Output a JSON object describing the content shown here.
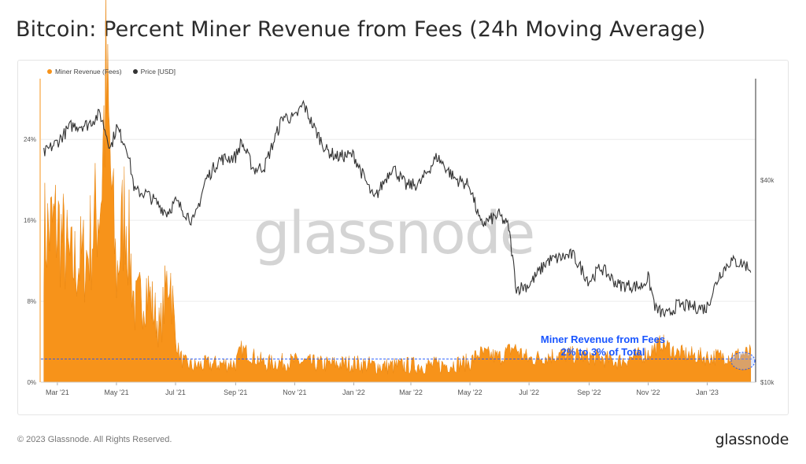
{
  "title": "Bitcoin: Percent Miner Revenue from Fees (24h Moving Average)",
  "legend": [
    {
      "label": "Miner Revenue (Fees)",
      "color": "#f7931a"
    },
    {
      "label": "Price [USD]",
      "color": "#333333"
    }
  ],
  "watermark": "glassnode",
  "annotation": {
    "line1": "Miner Revenue from Fees",
    "line2": "2% to 3% of Total",
    "color": "#1a56ff"
  },
  "footer": {
    "copyright": "© 2023 Glassnode. All Rights Reserved.",
    "logo": "glassnode"
  },
  "chart_data": {
    "type": "area",
    "title": "Bitcoin: Percent Miner Revenue from Fees (24h Moving Average)",
    "x_tick_labels": [
      "Mar '21",
      "May '21",
      "Jul '21",
      "Sep '21",
      "Nov '21",
      "Jan '22",
      "Mar '22",
      "May '22",
      "Jul '22",
      "Sep '22",
      "Nov '22",
      "Jan '23"
    ],
    "y_left_ticks": [
      "0%",
      "8%",
      "16%",
      "24%"
    ],
    "y_right_ticks": [
      "$10k",
      "$40k"
    ],
    "y_left_range": [
      0,
      30
    ],
    "y_right_scale": "log",
    "series": [
      {
        "name": "Miner Revenue (Fees)",
        "axis": "left",
        "unit": "%",
        "color": "#f7931a",
        "x": [
          "2021-02-15",
          "2021-03-01",
          "2021-03-15",
          "2021-04-01",
          "2021-04-15",
          "2021-04-20",
          "2021-05-01",
          "2021-05-10",
          "2021-05-20",
          "2021-06-01",
          "2021-06-15",
          "2021-06-25",
          "2021-07-01",
          "2021-07-05",
          "2021-07-10",
          "2021-07-20",
          "2021-08-01",
          "2021-09-01",
          "2021-09-07",
          "2021-10-01",
          "2021-11-01",
          "2021-12-01",
          "2022-01-01",
          "2022-02-01",
          "2022-03-01",
          "2022-04-01",
          "2022-05-01",
          "2022-05-10",
          "2022-06-01",
          "2022-06-15",
          "2022-07-01",
          "2022-08-01",
          "2022-09-01",
          "2022-10-01",
          "2022-11-01",
          "2022-11-15",
          "2022-12-01",
          "2023-01-01",
          "2023-02-01",
          "2023-02-15"
        ],
        "values": [
          14,
          15,
          11,
          12,
          18,
          28,
          10,
          17,
          7,
          9,
          5,
          11,
          4,
          2.5,
          1.6,
          1.3,
          1.5,
          1.6,
          3.0,
          1.6,
          1.8,
          1.5,
          1.6,
          1.3,
          1.4,
          1.4,
          1.7,
          2.6,
          2.2,
          3.2,
          2.0,
          2.5,
          2.3,
          1.8,
          2.6,
          3.7,
          2.6,
          2.2,
          2.4,
          2.6
        ]
      },
      {
        "name": "Price [USD]",
        "axis": "right",
        "unit": "USD",
        "color": "#333333",
        "x": [
          "2021-02-15",
          "2021-03-01",
          "2021-03-15",
          "2021-04-01",
          "2021-04-14",
          "2021-04-25",
          "2021-05-01",
          "2021-05-12",
          "2021-05-20",
          "2021-06-01",
          "2021-06-22",
          "2021-07-01",
          "2021-07-20",
          "2021-08-01",
          "2021-08-15",
          "2021-09-01",
          "2021-09-07",
          "2021-09-20",
          "2021-10-01",
          "2021-10-20",
          "2021-11-01",
          "2021-11-10",
          "2021-11-20",
          "2021-12-04",
          "2021-12-15",
          "2022-01-01",
          "2022-01-22",
          "2022-02-10",
          "2022-02-24",
          "2022-03-10",
          "2022-03-28",
          "2022-04-15",
          "2022-05-01",
          "2022-05-12",
          "2022-05-31",
          "2022-06-10",
          "2022-06-18",
          "2022-07-01",
          "2022-07-20",
          "2022-08-15",
          "2022-09-01",
          "2022-09-13",
          "2022-10-01",
          "2022-10-25",
          "2022-11-01",
          "2022-11-09",
          "2022-11-21",
          "2022-12-01",
          "2022-12-31",
          "2023-01-14",
          "2023-01-25",
          "2023-02-08",
          "2023-02-15"
        ],
        "values": [
          48000,
          52000,
          58000,
          58500,
          63000,
          50000,
          57500,
          50000,
          37000,
          36500,
          32000,
          34500,
          30000,
          40000,
          46000,
          47000,
          52000,
          43000,
          44000,
          62000,
          61000,
          67500,
          58000,
          49000,
          47000,
          47500,
          35000,
          44000,
          38500,
          39000,
          47000,
          40500,
          38500,
          29500,
          31500,
          29000,
          19000,
          19500,
          23000,
          24000,
          20000,
          22000,
          19500,
          19300,
          20500,
          16500,
          15800,
          17000,
          16600,
          21000,
          23000,
          22500,
          21800
        ]
      }
    ]
  }
}
